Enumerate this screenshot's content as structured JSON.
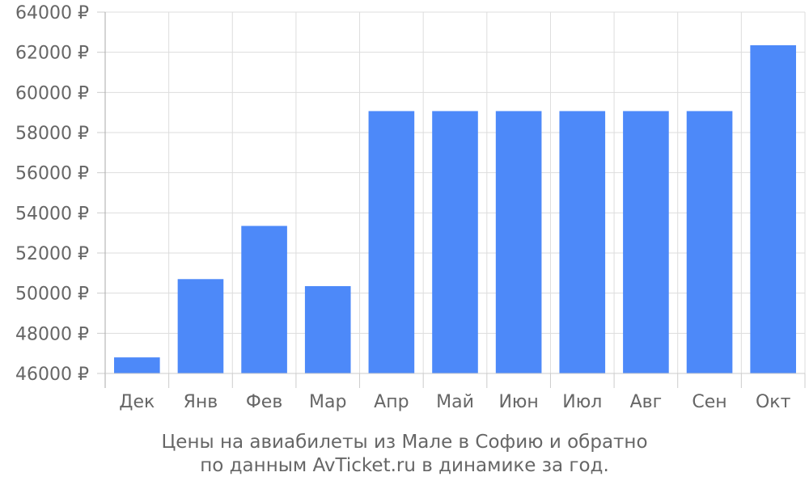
{
  "chart_data": {
    "type": "bar",
    "categories": [
      "Дек",
      "Янв",
      "Фев",
      "Мар",
      "Апр",
      "Май",
      "Июн",
      "Июл",
      "Авг",
      "Сен",
      "Окт"
    ],
    "values": [
      46800,
      50700,
      53350,
      50350,
      59070,
      59070,
      59070,
      59070,
      59070,
      59070,
      62350
    ],
    "ylim": [
      46000,
      64000
    ],
    "yticks": [
      46000,
      48000,
      50000,
      52000,
      54000,
      56000,
      58000,
      60000,
      62000,
      64000
    ],
    "ytick_labels": [
      "46000 ₽",
      "48000 ₽",
      "50000 ₽",
      "52000 ₽",
      "54000 ₽",
      "56000 ₽",
      "58000 ₽",
      "60000 ₽",
      "62000 ₽",
      "64000 ₽"
    ],
    "grid": true,
    "bar_color": "#4d89f9",
    "grid_color": "#dddddd",
    "text_color": "#666666",
    "caption_line1": "Цены на авиабилеты из Мале в Софию и обратно",
    "caption_line2": "по данным AvTicket.ru в динамике за год."
  }
}
